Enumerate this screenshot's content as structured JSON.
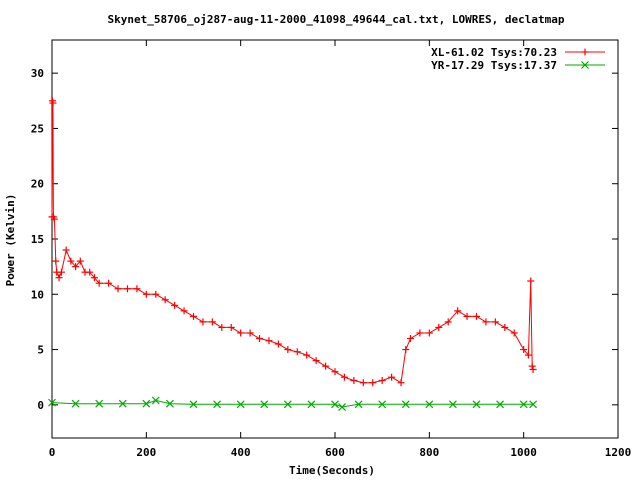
{
  "chart_data": {
    "type": "line",
    "title": "Skynet_58706_oj287-aug-11-2000_41098_49644_cal.txt, LOWRES, declatmap",
    "xlabel": "Time(Seconds)",
    "ylabel": "Power (Kelvin)",
    "xlim": [
      0,
      1200
    ],
    "ylim": [
      -3,
      33
    ],
    "xticks": [
      0,
      200,
      400,
      600,
      800,
      1000,
      1200
    ],
    "yticks": [
      0,
      5,
      10,
      15,
      20,
      25,
      30
    ],
    "grid": false,
    "legend_position": "top-right",
    "series": [
      {
        "name": "XL-61.02 Tsys:70.23",
        "color": "#ff0000",
        "marker": "plus",
        "x": [
          0,
          1,
          2,
          3,
          5,
          8,
          10,
          15,
          20,
          30,
          40,
          50,
          60,
          70,
          80,
          90,
          100,
          120,
          140,
          160,
          180,
          200,
          220,
          240,
          260,
          280,
          300,
          320,
          340,
          360,
          380,
          400,
          420,
          440,
          460,
          480,
          500,
          520,
          540,
          560,
          580,
          600,
          620,
          640,
          660,
          680,
          700,
          720,
          740,
          750,
          760,
          780,
          800,
          820,
          840,
          860,
          880,
          900,
          920,
          940,
          960,
          980,
          1000,
          1010,
          1015,
          1018,
          1020
        ],
        "y": [
          17,
          27.5,
          27.3,
          17,
          16.8,
          13,
          12,
          11.5,
          12,
          14,
          13,
          12.5,
          13,
          12,
          12,
          11.5,
          11,
          11,
          10.5,
          10.5,
          10.5,
          10,
          10,
          9.5,
          9,
          8.5,
          8,
          7.5,
          7.5,
          7,
          7,
          6.5,
          6.5,
          6,
          5.8,
          5.5,
          5,
          4.8,
          4.5,
          4,
          3.5,
          3,
          2.5,
          2.2,
          2,
          2,
          2.2,
          2.5,
          2,
          5,
          6,
          6.5,
          6.5,
          7,
          7.5,
          8.5,
          8,
          8,
          7.5,
          7.5,
          7,
          6.5,
          5,
          4.5,
          11.2,
          3.5,
          3.2
        ]
      },
      {
        "name": "YR-17.29 Tsys:17.37",
        "color": "#00aa00",
        "marker": "cross",
        "x": [
          0,
          50,
          100,
          150,
          200,
          220,
          250,
          300,
          350,
          400,
          450,
          500,
          550,
          600,
          615,
          650,
          700,
          750,
          800,
          850,
          900,
          950,
          1000,
          1020
        ],
        "y": [
          0.2,
          0.1,
          0.1,
          0.1,
          0.1,
          0.4,
          0.1,
          0.05,
          0.05,
          0.05,
          0.05,
          0.05,
          0.05,
          0.05,
          -0.2,
          0.05,
          0.05,
          0.05,
          0.05,
          0.05,
          0.05,
          0.05,
          0.05,
          0.05
        ]
      }
    ]
  }
}
